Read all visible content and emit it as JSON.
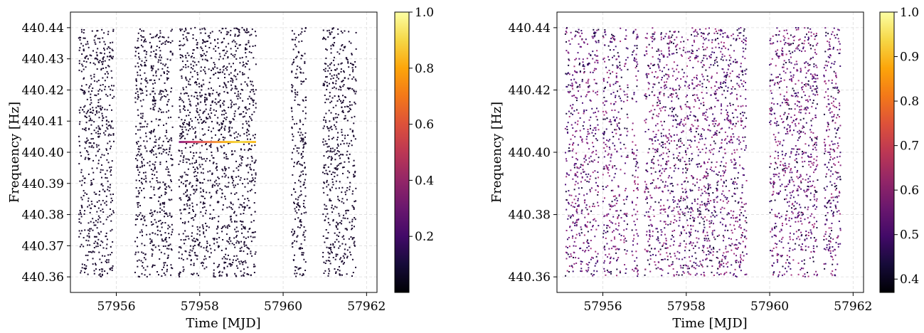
{
  "chart_data": [
    {
      "type": "scatter",
      "xlabel": "Time [MJD]",
      "ylabel": "Frequency [Hz]",
      "xlim": [
        57954.9,
        57962.25
      ],
      "ylim": [
        440.355,
        440.445
      ],
      "xticks": [
        "57956",
        "57958",
        "57960",
        "57962"
      ],
      "yticks": [
        "440.36",
        "440.37",
        "440.38",
        "440.39",
        "440.40",
        "440.41",
        "440.42",
        "440.43",
        "440.44"
      ],
      "grid": true,
      "colormap": "inferno",
      "colorbar": {
        "min": 0.0,
        "max": 1.0,
        "ticks": [
          "0.2",
          "0.4",
          "0.6",
          "0.8",
          "1.0"
        ]
      },
      "point_color": "#1a0a2e",
      "data_segments": [
        [
          55.1,
          55.95
        ],
        [
          56.45,
          56.75
        ],
        [
          56.8,
          57.35
        ],
        [
          57.5,
          59.35
        ],
        [
          60.2,
          60.55
        ],
        [
          60.95,
          61.75
        ]
      ],
      "y_range": [
        440.36,
        440.44
      ],
      "point_count": 3200,
      "signal_track": {
        "frequency": 440.4033,
        "x_start": 57957.5,
        "x_end": 57959.35,
        "stops": [
          "#8c2981",
          "#d6446d",
          "#f07f4f",
          "#fbb91f",
          "#f5db4c",
          "#fbb91f"
        ]
      }
    },
    {
      "type": "scatter",
      "xlabel": "Time [MJD]",
      "ylabel": "Frequency [Hz]",
      "xlim": [
        57954.9,
        57962.25
      ],
      "ylim": [
        440.355,
        440.445
      ],
      "xticks": [
        "57956",
        "57958",
        "57960",
        "57962"
      ],
      "yticks": [
        "440.36",
        "440.38",
        "440.40",
        "440.42",
        "440.44"
      ],
      "grid": true,
      "colormap": "inferno",
      "colorbar": {
        "min": 0.37,
        "max": 1.0,
        "ticks": [
          "0.4",
          "0.5",
          "0.6",
          "0.7",
          "0.8",
          "0.9",
          "1.0"
        ]
      },
      "point_colors": [
        "#1a0b3a",
        "#3b0f70",
        "#51127c",
        "#721f81",
        "#8c2981",
        "#a3307e"
      ],
      "data_segments": [
        [
          55.1,
          55.9
        ],
        [
          56.0,
          56.45
        ],
        [
          56.5,
          56.6
        ],
        [
          56.7,
          56.85
        ],
        [
          57.0,
          59.45
        ],
        [
          60.0,
          61.15
        ],
        [
          61.3,
          61.7
        ]
      ],
      "y_range": [
        440.36,
        440.44
      ],
      "point_count": 3600
    }
  ]
}
